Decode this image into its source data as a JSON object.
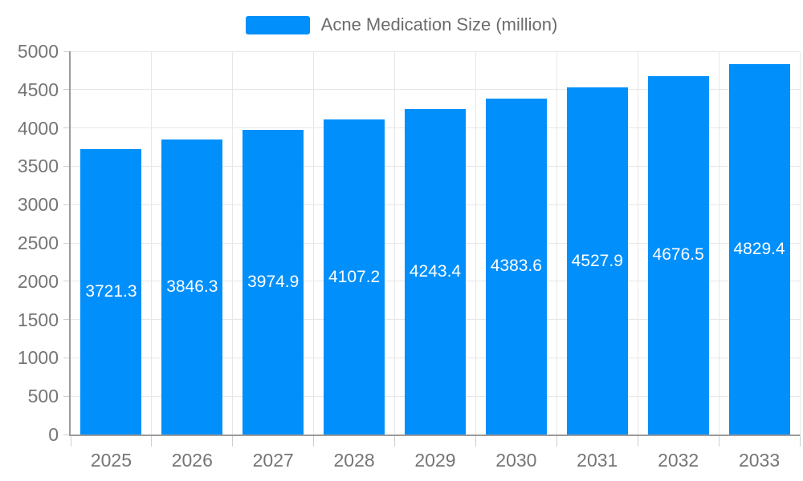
{
  "chart_data": {
    "type": "bar",
    "title": "",
    "legend": {
      "label": "Acne Medication Size (million)",
      "position": "top"
    },
    "categories": [
      "2025",
      "2026",
      "2027",
      "2028",
      "2029",
      "2030",
      "2031",
      "2032",
      "2033"
    ],
    "series": [
      {
        "name": "Acne Medication Size (million)",
        "values": [
          3721.3,
          3846.3,
          3974.9,
          4107.2,
          4243.4,
          4383.6,
          4527.9,
          4676.5,
          4829.4
        ],
        "value_labels": [
          "3721.3",
          "3846.3",
          "3974.9",
          "4107.2",
          "4243.4",
          "4383.6",
          "4527.9",
          "4676.5",
          "4829.4"
        ]
      }
    ],
    "xlabel": "",
    "ylabel": "",
    "ylim": [
      0,
      5000
    ],
    "ytick_step": 500,
    "ytick_labels": [
      "0",
      "500",
      "1000",
      "1500",
      "2000",
      "2500",
      "3000",
      "3500",
      "4000",
      "4500",
      "5000"
    ],
    "grid": true,
    "colors": {
      "bar": "#008FFB",
      "value_label": "#ffffff",
      "axis_label": "#757575",
      "legend_text": "#6b6b6b",
      "grid_line": "#e7e7e7",
      "axis_line": "#9b9b9b",
      "tick": "#cfcfcf",
      "background": "#ffffff"
    }
  }
}
